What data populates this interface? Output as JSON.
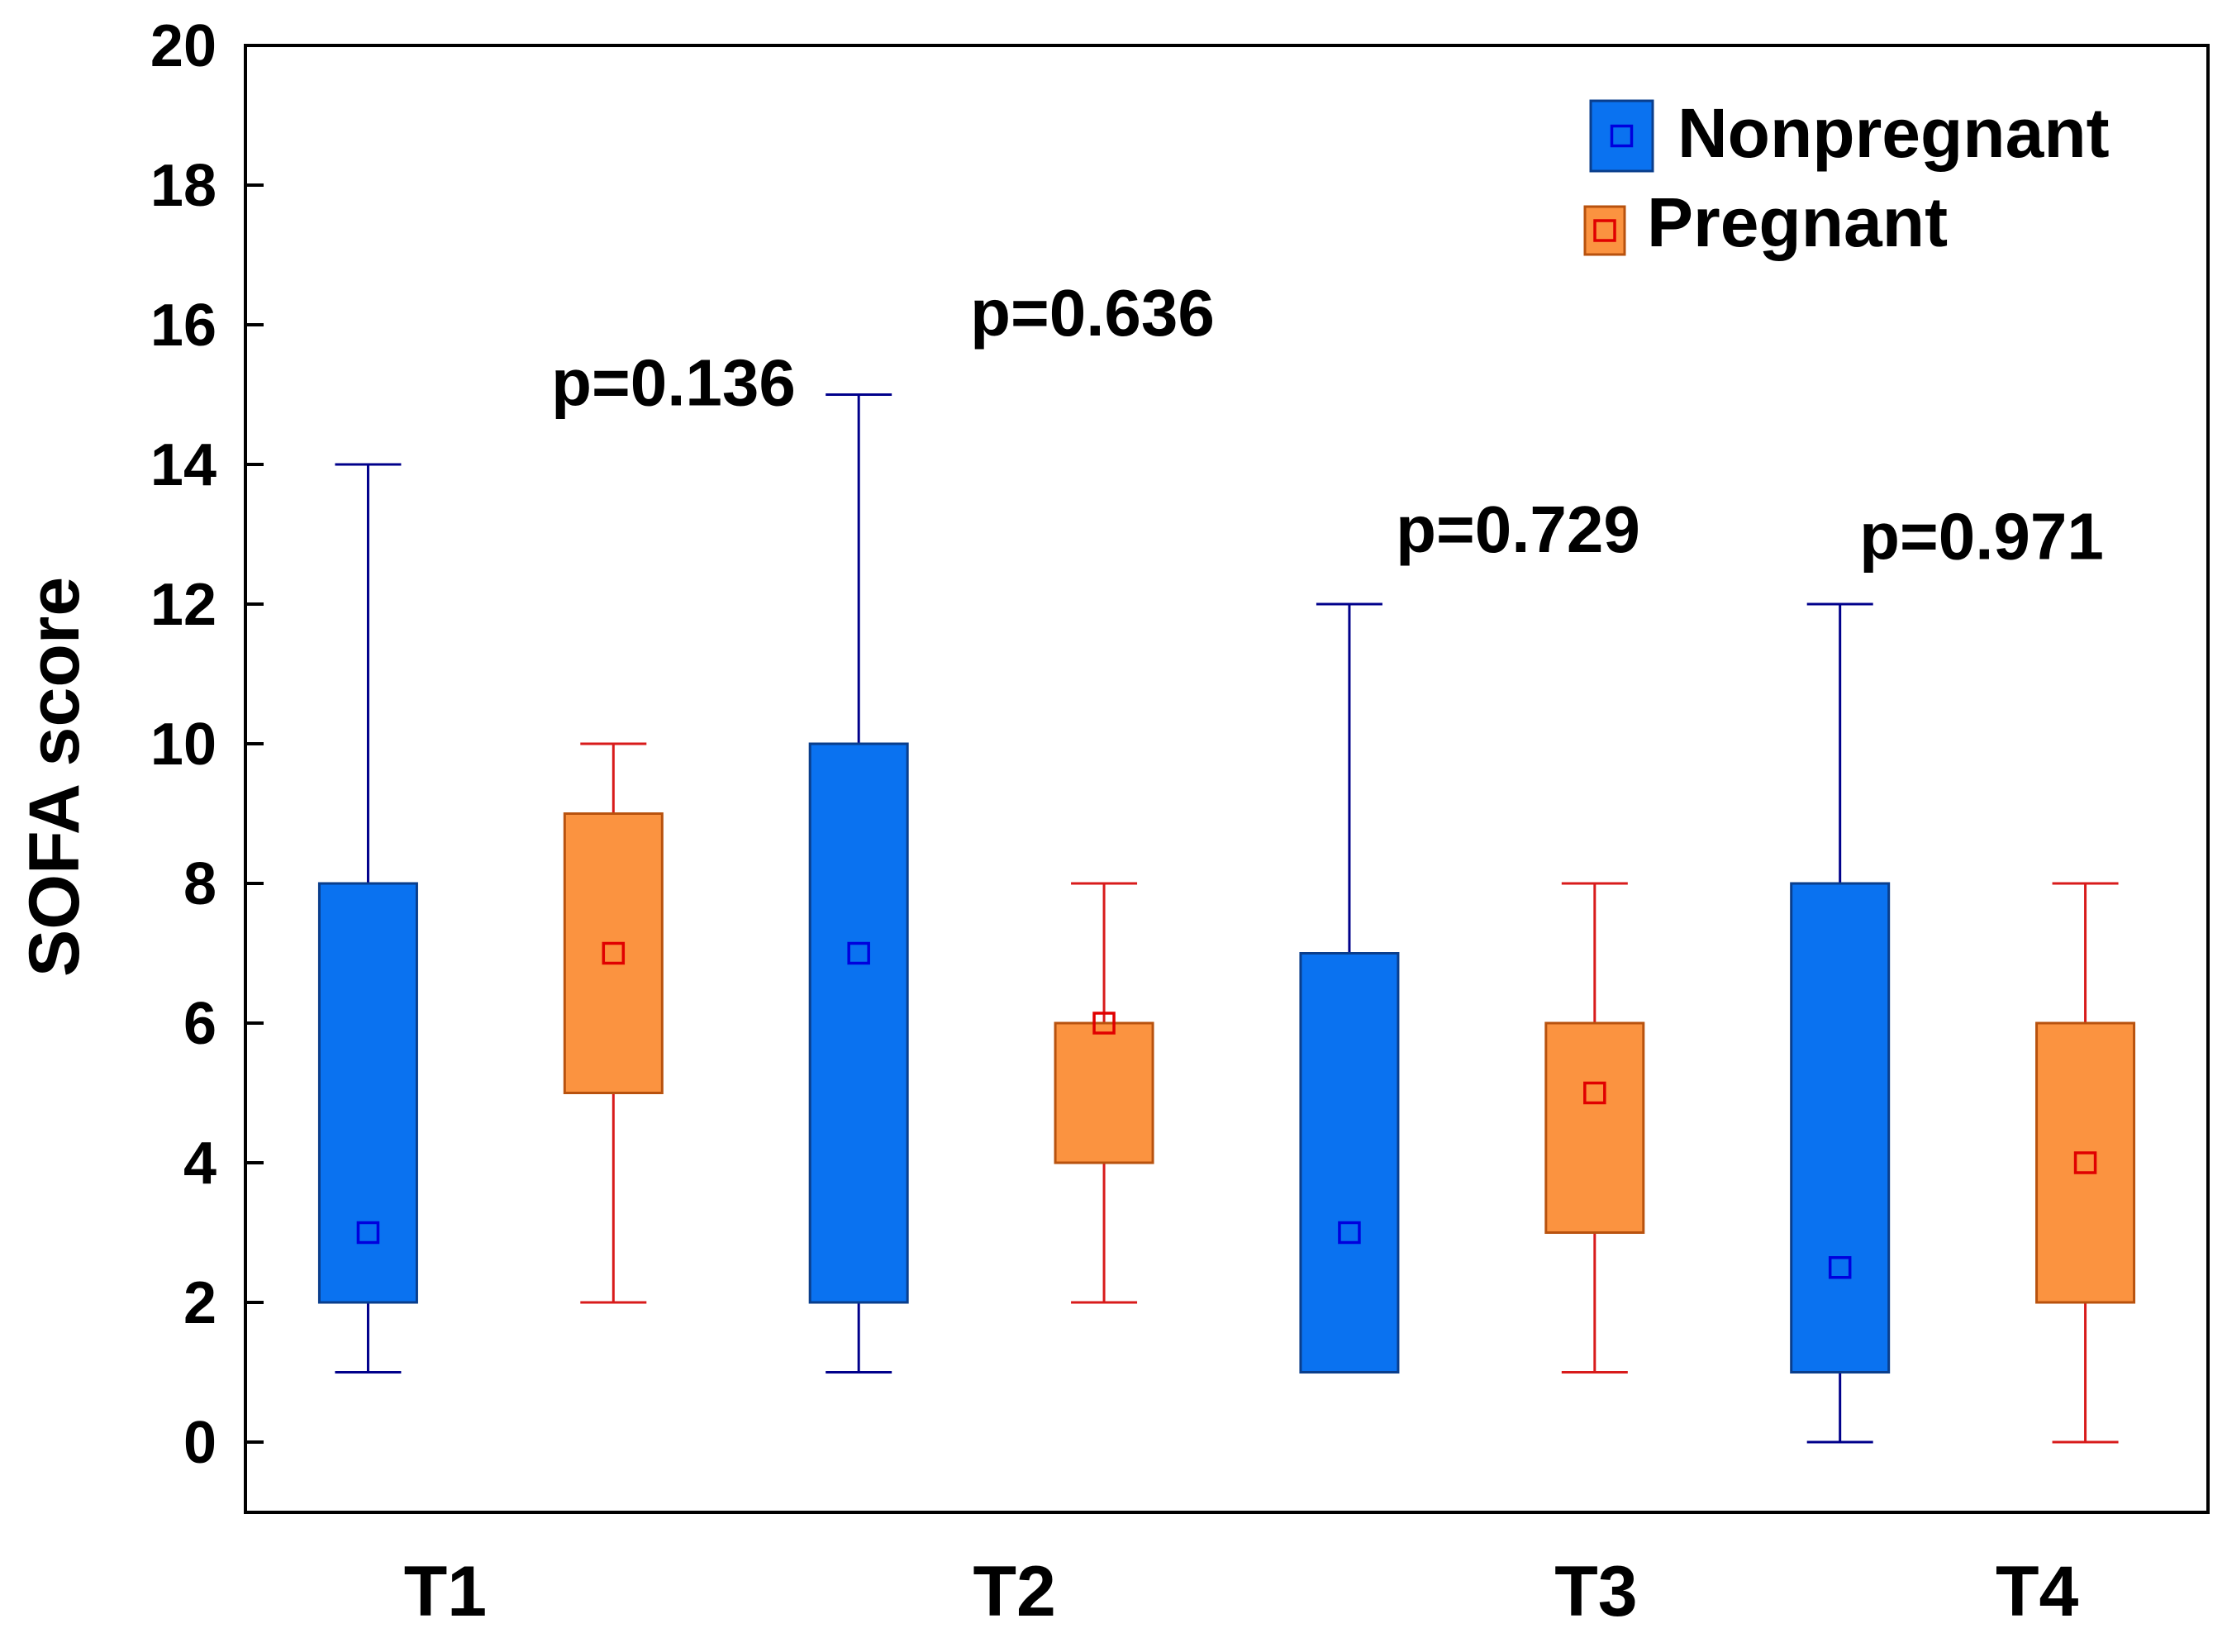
{
  "chart_data": {
    "type": "boxplot",
    "title": "",
    "xlabel": "",
    "ylabel": "SOFA score",
    "ylim": [
      -1,
      20
    ],
    "yticks": [
      0,
      2,
      4,
      6,
      8,
      10,
      12,
      14,
      16,
      18,
      20
    ],
    "categories": [
      "T1",
      "T2",
      "T3",
      "T4"
    ],
    "legend": {
      "position": "top-right"
    },
    "series": [
      {
        "name": "Nonpregnant",
        "color": "#0a72f0",
        "line_color": "#00008b",
        "marker_color": "#0000dd",
        "boxes": [
          {
            "min": 1,
            "q1": 2,
            "median": 3,
            "q3": 8,
            "max": 14
          },
          {
            "min": 1,
            "q1": 2,
            "median": 7,
            "q3": 10,
            "max": 15
          },
          {
            "min": 1,
            "q1": 1,
            "median": 3,
            "q3": 7,
            "max": 12
          },
          {
            "min": 0,
            "q1": 1,
            "median": 2.5,
            "q3": 8,
            "max": 12
          }
        ]
      },
      {
        "name": "Pregnant",
        "color": "#fb9340",
        "line_color": "#d81b1b",
        "marker_color": "#e00000",
        "boxes": [
          {
            "min": 2,
            "q1": 5,
            "median": 7,
            "q3": 9,
            "max": 10
          },
          {
            "min": 2,
            "q1": 4,
            "median": 6,
            "q3": 6,
            "max": 8
          },
          {
            "min": 1,
            "q1": 3,
            "median": 5,
            "q3": 6,
            "max": 8
          },
          {
            "min": 0,
            "q1": 2,
            "median": 4,
            "q3": 6,
            "max": 8
          }
        ]
      }
    ],
    "annotations": [
      {
        "text": "p=0.136",
        "category": "T1",
        "y": 15.2
      },
      {
        "text": "p=0.636",
        "category": "T2",
        "y": 16.2
      },
      {
        "text": "p=0.729",
        "category": "T3",
        "y": 13.1
      },
      {
        "text": "p=0.971",
        "category": "T4",
        "y": 13.0
      }
    ]
  }
}
